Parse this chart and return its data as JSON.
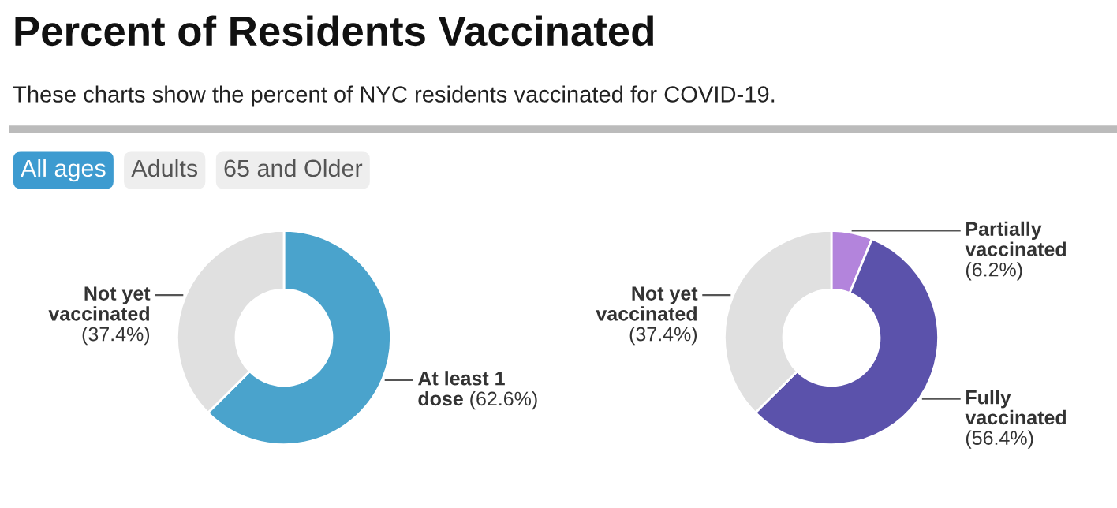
{
  "chart_data": [
    {
      "type": "donut",
      "title": "Percent of Residents Vaccinated",
      "subtitle": "These charts show the percent of NYC residents vaccinated for COVID-19.",
      "annotations": [
        "All ages",
        "Adults",
        "65 and Older"
      ],
      "categories": [
        "At least 1 dose",
        "Not yet vaccinated"
      ],
      "values": [
        62.6,
        37.4
      ],
      "colors": [
        "#4aa3cc",
        "#e0e0e0"
      ],
      "value_labels": [
        "(62.6%)",
        "(37.4%)"
      ]
    },
    {
      "type": "donut",
      "categories": [
        "Partially vaccinated",
        "Fully vaccinated",
        "Not yet vaccinated"
      ],
      "values": [
        6.2,
        56.4,
        37.4
      ],
      "colors": [
        "#b384dc",
        "#5b52ab",
        "#e0e0e0"
      ],
      "value_labels": [
        "(6.2%)",
        "(56.4%)",
        "(37.4%)"
      ]
    }
  ]
}
